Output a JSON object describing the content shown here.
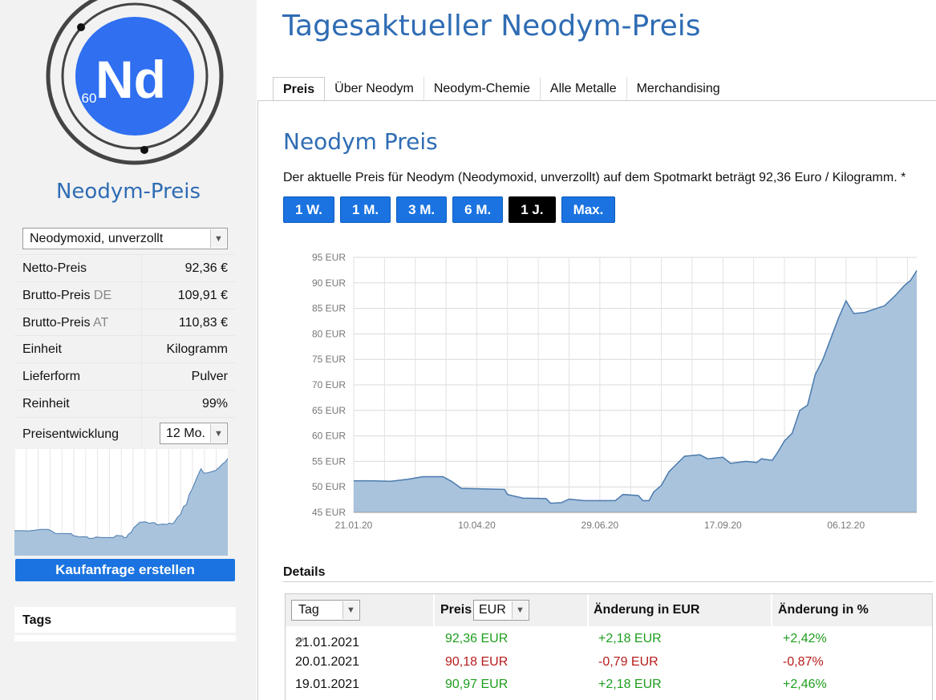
{
  "logo": {
    "symbol": "Nd",
    "number": "60"
  },
  "sidebar": {
    "title": "Neodym-Preis",
    "product_select": "Neodymoxid, unverzollt",
    "specs": [
      {
        "label": "Netto-Preis",
        "suffix": "",
        "value": "92,36 €"
      },
      {
        "label": "Brutto-Preis",
        "suffix": "DE",
        "value": "109,91 €"
      },
      {
        "label": "Brutto-Preis",
        "suffix": "AT",
        "value": "110,83 €"
      },
      {
        "label": "Einheit",
        "suffix": "",
        "value": "Kilogramm"
      },
      {
        "label": "Lieferform",
        "suffix": "",
        "value": "Pulver"
      },
      {
        "label": "Reinheit",
        "suffix": "",
        "value": "99%"
      }
    ],
    "trend_label": "Preisentwicklung",
    "trend_select": "12 Mo.",
    "order_button": "Kaufanfrage erstellen",
    "tags_title": "Tags"
  },
  "header": {
    "title": "Tagesaktueller Neodym-Preis",
    "tabs": [
      "Preis",
      "Über Neodym",
      "Neodym-Chemie",
      "Alle Metalle",
      "Merchandising"
    ],
    "active_tab": 0
  },
  "main": {
    "heading": "Neodym Preis",
    "intro": "Der aktuelle Preis für Neodym (Neodymoxid, unverzollt) auf dem Spotmarkt beträgt 92,36 Euro / Kilogramm. *",
    "ranges": [
      "1 W.",
      "1 M.",
      "3 M.",
      "6 M.",
      "1 J.",
      "Max."
    ],
    "active_range": 4
  },
  "details": {
    "title": "Details",
    "col_date_select": "Tag",
    "col_price": "Preis",
    "col_currency_select": "EUR",
    "col_change_eur": "Änderung in EUR",
    "col_change_pct": "Änderung in %",
    "rows": [
      {
        "date": "21.01.2021",
        "note": "**",
        "price": "92,36 EUR",
        "change": "+2,18 EUR",
        "pct": "+2,42%",
        "dir": "up"
      },
      {
        "date": "20.01.2021",
        "note": "",
        "price": "90,18 EUR",
        "change": "-0,79 EUR",
        "pct": "-0,87%",
        "dir": "down"
      },
      {
        "date": "19.01.2021",
        "note": "",
        "price": "90,97 EUR",
        "change": "+2,18 EUR",
        "pct": "+2,46%",
        "dir": "up"
      }
    ]
  },
  "colors": {
    "brand_blue": "#2f6cb4",
    "button_blue": "#1a73e0",
    "area_fill": "#a9c3dd",
    "area_line": "#4a7aad",
    "positive": "#1e9e1e",
    "negative": "#b71c1c"
  },
  "chart_data": {
    "type": "area",
    "y_unit": "EUR",
    "y_ticks": [
      "95 EUR",
      "90 EUR",
      "85 EUR",
      "80 EUR",
      "75 EUR",
      "70 EUR",
      "65 EUR",
      "60 EUR",
      "55 EUR",
      "50 EUR",
      "45 EUR"
    ],
    "ylim": [
      45,
      95
    ],
    "x_ticks": [
      "21.01.20",
      "10.04.20",
      "29.06.20",
      "17.09.20",
      "06.12.20"
    ],
    "x_tick_days": [
      0,
      80,
      160,
      240,
      320
    ],
    "x_range_days": [
      0,
      366
    ],
    "grid": true,
    "series": [
      {
        "points": [
          [
            0,
            51.2
          ],
          [
            12,
            51.2
          ],
          [
            24,
            51.1
          ],
          [
            35,
            51.5
          ],
          [
            45,
            52.0
          ],
          [
            58,
            52.0
          ],
          [
            64,
            51.0
          ],
          [
            70,
            49.7
          ],
          [
            85,
            49.6
          ],
          [
            98,
            49.5
          ],
          [
            100,
            48.5
          ],
          [
            110,
            47.8
          ],
          [
            125,
            47.7
          ],
          [
            128,
            46.8
          ],
          [
            135,
            46.9
          ],
          [
            140,
            47.6
          ],
          [
            150,
            47.3
          ],
          [
            170,
            47.3
          ],
          [
            175,
            48.5
          ],
          [
            185,
            48.3
          ],
          [
            188,
            47.3
          ],
          [
            192,
            47.3
          ],
          [
            195,
            49.0
          ],
          [
            200,
            50.3
          ],
          [
            205,
            53.0
          ],
          [
            210,
            54.5
          ],
          [
            215,
            56.0
          ],
          [
            225,
            56.3
          ],
          [
            230,
            55.5
          ],
          [
            240,
            55.8
          ],
          [
            245,
            54.6
          ],
          [
            255,
            55.0
          ],
          [
            262,
            54.8
          ],
          [
            265,
            55.5
          ],
          [
            272,
            55.2
          ],
          [
            275,
            56.5
          ],
          [
            280,
            59.0
          ],
          [
            285,
            60.5
          ],
          [
            290,
            65.0
          ],
          [
            295,
            66.0
          ],
          [
            300,
            72.0
          ],
          [
            305,
            75.0
          ],
          [
            310,
            79.0
          ],
          [
            315,
            83.0
          ],
          [
            320,
            86.5
          ],
          [
            325,
            84.0
          ],
          [
            332,
            84.2
          ],
          [
            340,
            85.0
          ],
          [
            345,
            85.5
          ],
          [
            352,
            87.5
          ],
          [
            358,
            89.5
          ],
          [
            362,
            90.5
          ],
          [
            366,
            92.4
          ]
        ]
      }
    ]
  }
}
